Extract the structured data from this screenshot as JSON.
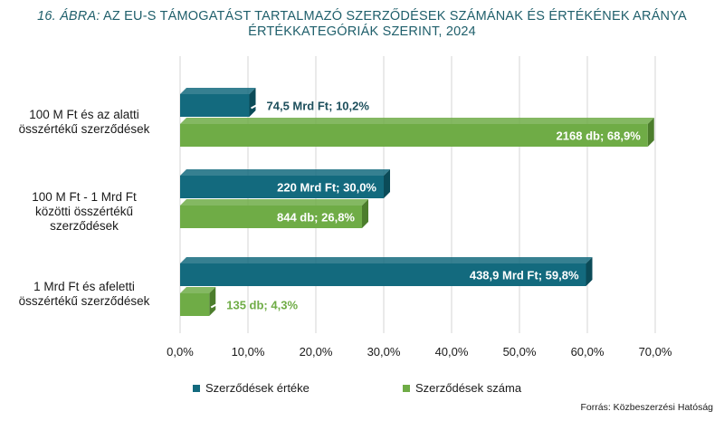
{
  "title": {
    "number": "16. ÁBRA:",
    "line1": "AZ EU-S TÁMOGATÁST TARTALMAZÓ SZERZŐDÉSEK SZÁMÁNAK ÉS ÉRTÉKÉNEK ARÁNYA",
    "line2": "ÉRTÉKKATEGÓRIÁK SZERINT, 2024"
  },
  "source": "Forrás: Közbeszerzési Hatóság",
  "colors": {
    "teal": "#136a7e",
    "teal_dark": "#0b4b58",
    "green": "#6fac46",
    "green_dark": "#4c7d2c",
    "title": "#1f5f6b"
  },
  "chart_data": {
    "type": "bar",
    "orientation": "horizontal",
    "categories": [
      [
        "100 M Ft  és az alatti",
        "összértékű  szerződések"
      ],
      [
        "100 M Ft - 1 Mrd Ft",
        "közötti összértékű",
        "szerződések"
      ],
      [
        "1 Mrd Ft  és afeletti",
        "összértékű szerződések"
      ]
    ],
    "series": [
      {
        "name": "Szerződések értéke",
        "values": [
          10.2,
          30.0,
          59.8
        ],
        "labels": [
          "74,5 Mrd Ft; 10,2%",
          "220 Mrd Ft; 30,0%",
          "438,9 Mrd Ft; 59,8%"
        ]
      },
      {
        "name": "Szerződések száma",
        "values": [
          68.9,
          26.8,
          4.3
        ],
        "labels": [
          "2168 db; 68,9%",
          "844 db; 26,8%",
          "135 db; 4,3%"
        ]
      }
    ],
    "x_ticks": [
      "0,0%",
      "10,0%",
      "20,0%",
      "30,0%",
      "40,0%",
      "50,0%",
      "60,0%",
      "70,0%"
    ],
    "xlim": [
      0,
      70
    ],
    "grid": true,
    "legend_position": "bottom"
  }
}
